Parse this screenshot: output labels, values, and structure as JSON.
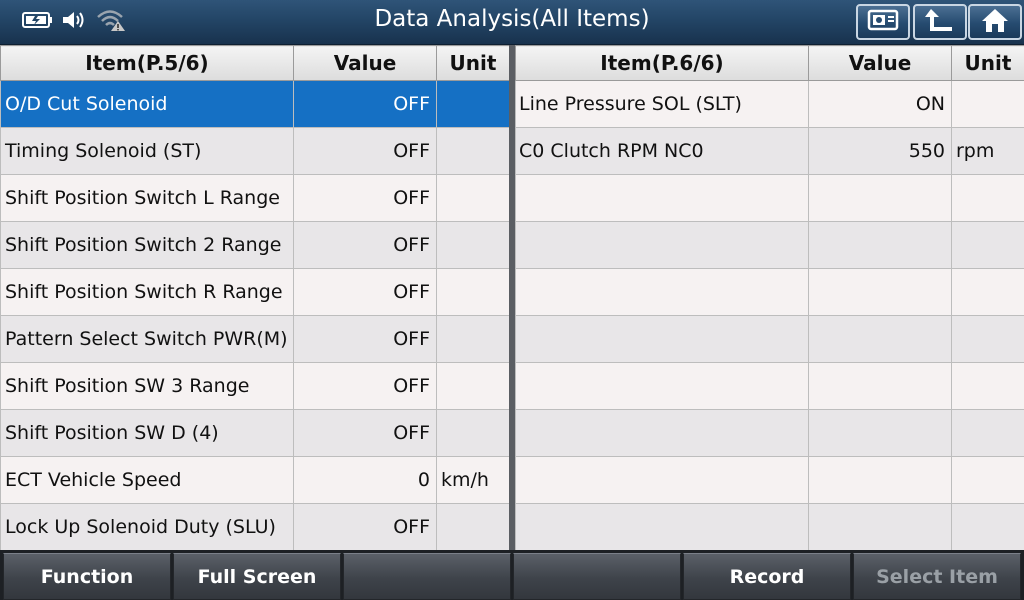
{
  "header": {
    "title": "Data Analysis(All Items)",
    "status_icons": [
      "battery-icon",
      "speaker-icon",
      "wifi-warning-icon"
    ],
    "buttons": [
      "screenshot-icon",
      "back-arrow-icon",
      "home-icon"
    ]
  },
  "left_table": {
    "headers": {
      "item": "Item(P.5/6)",
      "value": "Value",
      "unit": "Unit"
    },
    "rows": [
      {
        "item": "O/D Cut Solenoid",
        "value": "OFF",
        "unit": ""
      },
      {
        "item": "Timing Solenoid (ST)",
        "value": "OFF",
        "unit": ""
      },
      {
        "item": "Shift Position Switch L Range",
        "value": "OFF",
        "unit": ""
      },
      {
        "item": "Shift Position Switch 2 Range",
        "value": "OFF",
        "unit": ""
      },
      {
        "item": "Shift Position Switch R Range",
        "value": "OFF",
        "unit": ""
      },
      {
        "item": "Pattern Select Switch PWR(M)",
        "value": "OFF",
        "unit": ""
      },
      {
        "item": "Shift Position SW 3 Range",
        "value": "OFF",
        "unit": ""
      },
      {
        "item": "Shift Position SW D (4)",
        "value": "OFF",
        "unit": ""
      },
      {
        "item": "ECT Vehicle Speed",
        "value": "0",
        "unit": "km/h"
      },
      {
        "item": "Lock Up Solenoid Duty (SLU)",
        "value": "OFF",
        "unit": ""
      }
    ]
  },
  "right_table": {
    "headers": {
      "item": "Item(P.6/6)",
      "value": "Value",
      "unit": "Unit"
    },
    "rows": [
      {
        "item": "Line Pressure SOL (SLT)",
        "value": "ON",
        "unit": ""
      },
      {
        "item": "C0 Clutch RPM NC0",
        "value": "550",
        "unit": "rpm"
      },
      {
        "item": "",
        "value": "",
        "unit": ""
      },
      {
        "item": "",
        "value": "",
        "unit": ""
      },
      {
        "item": "",
        "value": "",
        "unit": ""
      },
      {
        "item": "",
        "value": "",
        "unit": ""
      },
      {
        "item": "",
        "value": "",
        "unit": ""
      },
      {
        "item": "",
        "value": "",
        "unit": ""
      },
      {
        "item": "",
        "value": "",
        "unit": ""
      },
      {
        "item": "",
        "value": "",
        "unit": ""
      }
    ]
  },
  "toolbar": {
    "function": "Function",
    "full_screen": "Full Screen",
    "empty1": "",
    "empty2": "",
    "record": "Record",
    "select_item": "Select Item"
  },
  "colors": {
    "selected_row": "#1570c4",
    "title_bar": "#234566",
    "disabled_text": "#9aa0a6"
  }
}
